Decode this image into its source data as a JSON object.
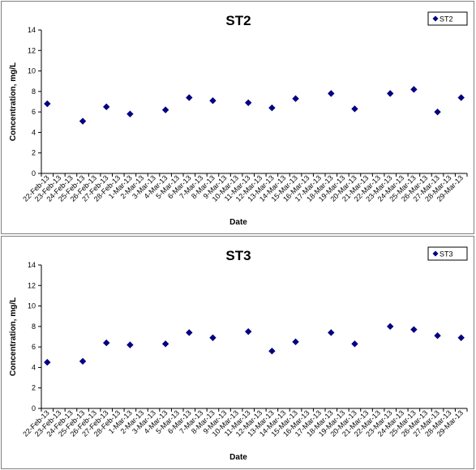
{
  "colors": {
    "marker": "#000080",
    "axis": "#000000",
    "border": "#808080"
  },
  "chart_data": [
    {
      "type": "scatter",
      "title": "ST2",
      "xlabel": "Date",
      "ylabel": "Concentration, mg/L",
      "ylim": [
        0,
        14
      ],
      "yticks": [
        "0",
        "2",
        "4",
        "6",
        "8",
        "10",
        "12",
        "14"
      ],
      "grid": false,
      "legend": {
        "position": "top-right",
        "entries": [
          "ST2"
        ]
      },
      "categories": [
        "22-Feb-13",
        "23-Feb-13",
        "24-Feb-13",
        "25-Feb-13",
        "26-Feb-13",
        "27-Feb-13",
        "28-Feb-13",
        "1-Mar-13",
        "2-Mar-13",
        "3-Mar-13",
        "4-Mar-13",
        "5-Mar-13",
        "6-Mar-13",
        "7-Mar-13",
        "8-Mar-13",
        "9-Mar-13",
        "10-Mar-13",
        "11-Mar-13",
        "12-Mar-13",
        "13-Mar-13",
        "14-Mar-13",
        "15-Mar-13",
        "16-Mar-13",
        "17-Mar-13",
        "18-Mar-13",
        "19-Mar-13",
        "20-Mar-13",
        "21-Mar-13",
        "22-Mar-13",
        "23-Mar-13",
        "24-Mar-13",
        "25-Mar-13",
        "26-Mar-13",
        "27-Mar-13",
        "28-Mar-13",
        "29-Mar-13"
      ],
      "series": [
        {
          "name": "ST2",
          "points": [
            {
              "x": "22-Feb-13",
              "y": 6.8
            },
            {
              "x": "25-Feb-13",
              "y": 5.1
            },
            {
              "x": "27-Feb-13",
              "y": 6.5
            },
            {
              "x": "1-Mar-13",
              "y": 5.8
            },
            {
              "x": "4-Mar-13",
              "y": 6.2
            },
            {
              "x": "6-Mar-13",
              "y": 7.4
            },
            {
              "x": "8-Mar-13",
              "y": 7.1
            },
            {
              "x": "11-Mar-13",
              "y": 6.9
            },
            {
              "x": "13-Mar-13",
              "y": 6.4
            },
            {
              "x": "15-Mar-13",
              "y": 7.3
            },
            {
              "x": "18-Mar-13",
              "y": 7.8
            },
            {
              "x": "20-Mar-13",
              "y": 6.3
            },
            {
              "x": "23-Mar-13",
              "y": 7.8
            },
            {
              "x": "25-Mar-13",
              "y": 8.2
            },
            {
              "x": "27-Mar-13",
              "y": 6.0
            },
            {
              "x": "29-Mar-13",
              "y": 7.4
            }
          ]
        }
      ]
    },
    {
      "type": "scatter",
      "title": "ST3",
      "xlabel": "Date",
      "ylabel": "Concentration, mg/L",
      "ylim": [
        0,
        14
      ],
      "yticks": [
        "0",
        "2",
        "4",
        "6",
        "8",
        "10",
        "12",
        "14"
      ],
      "grid": false,
      "legend": {
        "position": "top-right",
        "entries": [
          "ST3"
        ]
      },
      "categories": [
        "22-Feb-13",
        "23-Feb-13",
        "24-Feb-13",
        "25-Feb-13",
        "26-Feb-13",
        "27-Feb-13",
        "28-Feb-13",
        "1-Mar-13",
        "2-Mar-13",
        "3-Mar-13",
        "4-Mar-13",
        "5-Mar-13",
        "6-Mar-13",
        "7-Mar-13",
        "8-Mar-13",
        "9-Mar-13",
        "10-Mar-13",
        "11-Mar-13",
        "12-Mar-13",
        "13-Mar-13",
        "14-Mar-13",
        "15-Mar-13",
        "16-Mar-13",
        "17-Mar-13",
        "18-Mar-13",
        "19-Mar-13",
        "20-Mar-13",
        "21-Mar-13",
        "22-Mar-13",
        "23-Mar-13",
        "24-Mar-13",
        "25-Mar-13",
        "26-Mar-13",
        "27-Mar-13",
        "28-Mar-13",
        "29-Mar-13"
      ],
      "series": [
        {
          "name": "ST3",
          "points": [
            {
              "x": "22-Feb-13",
              "y": 4.5
            },
            {
              "x": "25-Feb-13",
              "y": 4.6
            },
            {
              "x": "27-Feb-13",
              "y": 6.4
            },
            {
              "x": "1-Mar-13",
              "y": 6.2
            },
            {
              "x": "4-Mar-13",
              "y": 6.3
            },
            {
              "x": "6-Mar-13",
              "y": 7.4
            },
            {
              "x": "8-Mar-13",
              "y": 6.9
            },
            {
              "x": "11-Mar-13",
              "y": 7.5
            },
            {
              "x": "13-Mar-13",
              "y": 5.6
            },
            {
              "x": "15-Mar-13",
              "y": 6.5
            },
            {
              "x": "18-Mar-13",
              "y": 7.4
            },
            {
              "x": "20-Mar-13",
              "y": 6.3
            },
            {
              "x": "23-Mar-13",
              "y": 8.0
            },
            {
              "x": "25-Mar-13",
              "y": 7.7
            },
            {
              "x": "27-Mar-13",
              "y": 7.1
            },
            {
              "x": "29-Mar-13",
              "y": 6.9
            }
          ]
        }
      ]
    }
  ]
}
